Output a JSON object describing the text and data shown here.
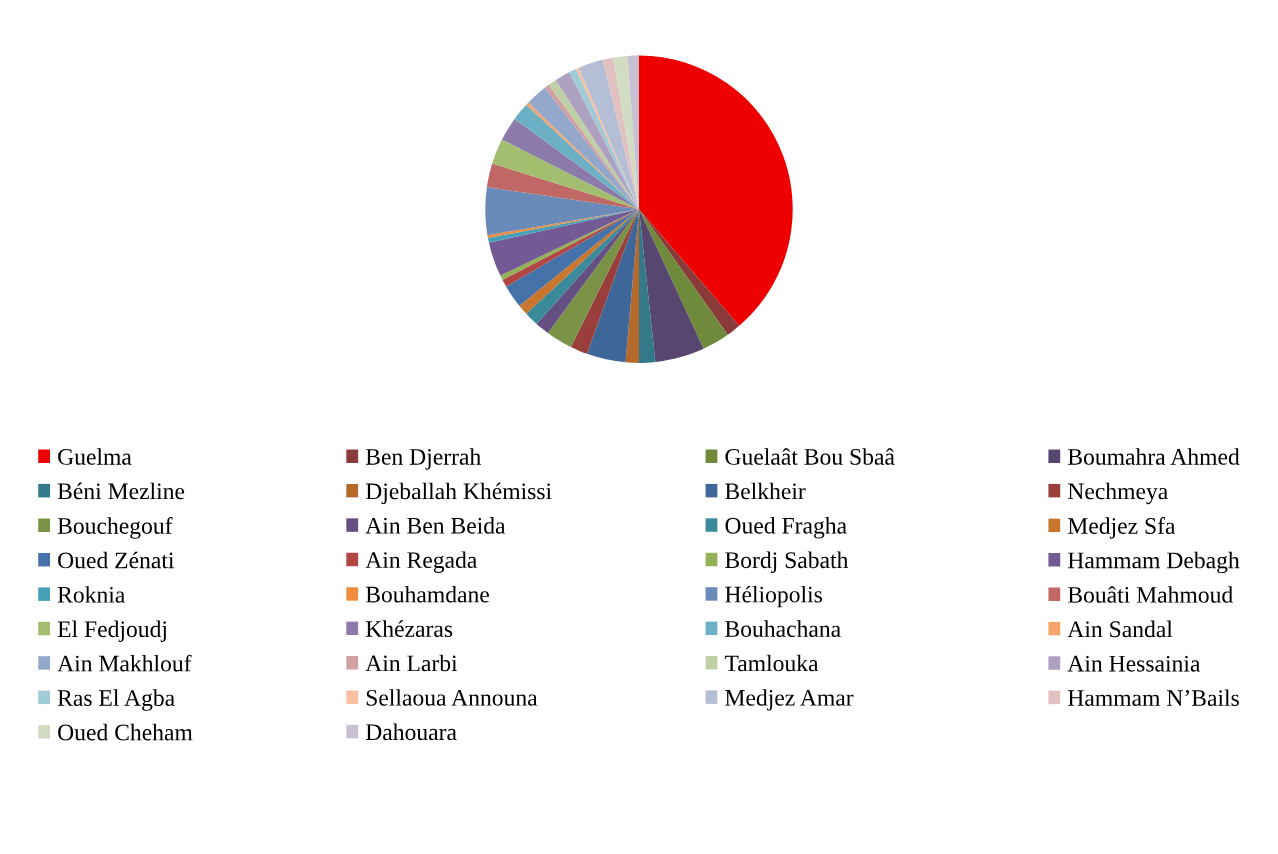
{
  "chart_data": {
    "type": "pie",
    "categories": [
      "Guelma",
      "Ben Djerrah",
      "Guelaât Bou Sbaâ",
      "Boumahra Ahmed",
      "Béni Mezline",
      "Djeballah Khémissi",
      "Belkheir",
      "Nechmeya",
      "Bouchegouf",
      "Ain Ben Beida",
      "Oued Fragha",
      "Medjez Sfa",
      "Oued Zénati",
      "Ain Regada",
      "Bordj Sabath",
      "Hammam Debagh",
      "Roknia",
      "Bouhamdane",
      "Héliopolis",
      "Bouâti Mahmoud",
      "El Fedjoudj",
      "Khézaras",
      "Bouhachana",
      "Ain Sandal",
      "Ain Makhlouf",
      "Ain Larbi",
      "Tamlouka",
      "Ain Hessainia",
      "Ras El Agba",
      "Sellaoua Announa",
      "Medjez Amar",
      "Hammam N’Bails",
      "Oued Cheham",
      "Dahouara"
    ],
    "values": [
      38.7,
      1.5,
      2.9,
      5.2,
      1.7,
      1.4,
      4.1,
      1.8,
      2.8,
      1.5,
      1.5,
      1.1,
      2.4,
      0.8,
      0.5,
      3.6,
      0.5,
      0.3,
      5.0,
      2.5,
      2.7,
      2.5,
      1.9,
      0.3,
      2.3,
      0.5,
      0.9,
      1.6,
      0.8,
      0.3,
      2.6,
      1.1,
      1.5,
      1.2
    ],
    "colors": [
      "#ee0000",
      "#8b3a3a",
      "#6e8a3a",
      "#57466f",
      "#34798a",
      "#b5692b",
      "#3e6699",
      "#9a3e3c",
      "#7a9246",
      "#644e82",
      "#3a8a9c",
      "#c9762f",
      "#4672aa",
      "#b04745",
      "#93b155",
      "#735a95",
      "#45a0b8",
      "#ef8c3e",
      "#6a8ab8",
      "#c06865",
      "#a2be6e",
      "#8c7aab",
      "#6cb0c6",
      "#f5a46a",
      "#94a8cc",
      "#d1a0a0",
      "#bfd0a8",
      "#ada0c0",
      "#9fcad6",
      "#f8c0a0",
      "#b4bfd6",
      "#e0c0c0",
      "#d2dcc2",
      "#c6c0d2"
    ],
    "legend": "bottom"
  }
}
